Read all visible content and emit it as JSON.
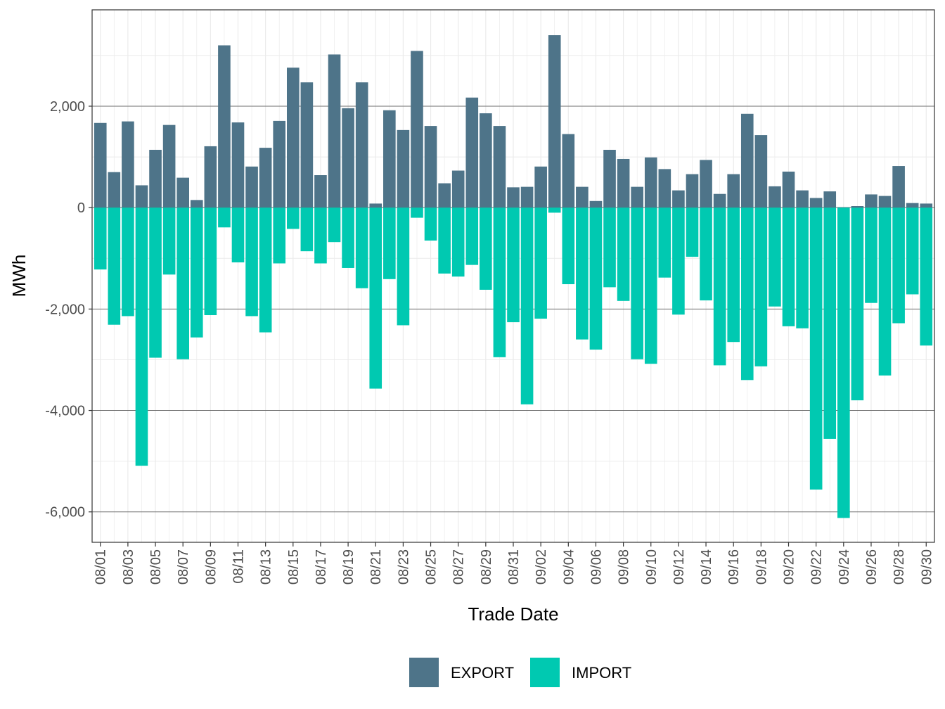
{
  "chart_data": {
    "type": "bar",
    "title": "",
    "xlabel": "Trade Date",
    "ylabel": "MWh",
    "ylim": [
      -6600,
      3900
    ],
    "yticks": [
      2000,
      0,
      -2000,
      -4000,
      -6000
    ],
    "ytick_labels": [
      "2,000",
      "0",
      "-2,000",
      "-4,000",
      "-6,000"
    ],
    "grid": true,
    "legend_position": "bottom",
    "categories": [
      "08/01",
      "08/02",
      "08/03",
      "08/04",
      "08/05",
      "08/06",
      "08/07",
      "08/08",
      "08/09",
      "08/10",
      "08/11",
      "08/12",
      "08/13",
      "08/14",
      "08/15",
      "08/16",
      "08/17",
      "08/18",
      "08/19",
      "08/20",
      "08/21",
      "08/22",
      "08/23",
      "08/24",
      "08/25",
      "08/26",
      "08/27",
      "08/28",
      "08/29",
      "08/30",
      "08/31",
      "09/01",
      "09/02",
      "09/03",
      "09/04",
      "09/05",
      "09/06",
      "09/07",
      "09/08",
      "09/09",
      "09/10",
      "09/11",
      "09/12",
      "09/13",
      "09/14",
      "09/15",
      "09/16",
      "09/17",
      "09/18",
      "09/19",
      "09/20",
      "09/21",
      "09/22",
      "09/23",
      "09/24",
      "09/25",
      "09/26",
      "09/27",
      "09/28",
      "09/29",
      "09/30"
    ],
    "xtick_labels": [
      "08/01",
      "08/03",
      "08/05",
      "08/07",
      "08/09",
      "08/11",
      "08/13",
      "08/15",
      "08/17",
      "08/19",
      "08/21",
      "08/23",
      "08/25",
      "08/27",
      "08/29",
      "08/31",
      "09/02",
      "09/04",
      "09/06",
      "09/08",
      "09/10",
      "09/12",
      "09/14",
      "09/16",
      "09/18",
      "09/20",
      "09/22",
      "09/24",
      "09/26",
      "09/28",
      "09/30"
    ],
    "series": [
      {
        "name": "EXPORT",
        "color": "#4e7489",
        "values": [
          1670,
          700,
          1700,
          440,
          1140,
          1630,
          590,
          150,
          1210,
          3200,
          1680,
          810,
          1180,
          1710,
          2760,
          2470,
          640,
          3020,
          1960,
          2470,
          80,
          1920,
          1530,
          3090,
          1610,
          480,
          730,
          2170,
          1860,
          1610,
          400,
          410,
          810,
          3400,
          1450,
          410,
          130,
          1140,
          960,
          410,
          990,
          760,
          340,
          660,
          940,
          270,
          660,
          1850,
          1430,
          420,
          710,
          340,
          190,
          320,
          10,
          30,
          260,
          230,
          820,
          90,
          80
        ]
      },
      {
        "name": "IMPORT",
        "color": "#00c9b1",
        "values": [
          -1220,
          -2310,
          -2140,
          -5090,
          -2960,
          -1320,
          -2990,
          -2560,
          -2120,
          -390,
          -1080,
          -2140,
          -2460,
          -1100,
          -420,
          -860,
          -1100,
          -680,
          -1190,
          -1590,
          -3570,
          -1410,
          -2320,
          -200,
          -650,
          -1300,
          -1360,
          -1130,
          -1620,
          -2950,
          -2260,
          -3880,
          -2190,
          -100,
          -1510,
          -2600,
          -2800,
          -1570,
          -1840,
          -2990,
          -3080,
          -1380,
          -2110,
          -970,
          -1830,
          -3110,
          -2650,
          -3400,
          -3130,
          -1950,
          -2340,
          -2380,
          -5560,
          -4560,
          -6120,
          -3800,
          -1880,
          -3310,
          -2280,
          -1710,
          -2720
        ]
      }
    ]
  }
}
